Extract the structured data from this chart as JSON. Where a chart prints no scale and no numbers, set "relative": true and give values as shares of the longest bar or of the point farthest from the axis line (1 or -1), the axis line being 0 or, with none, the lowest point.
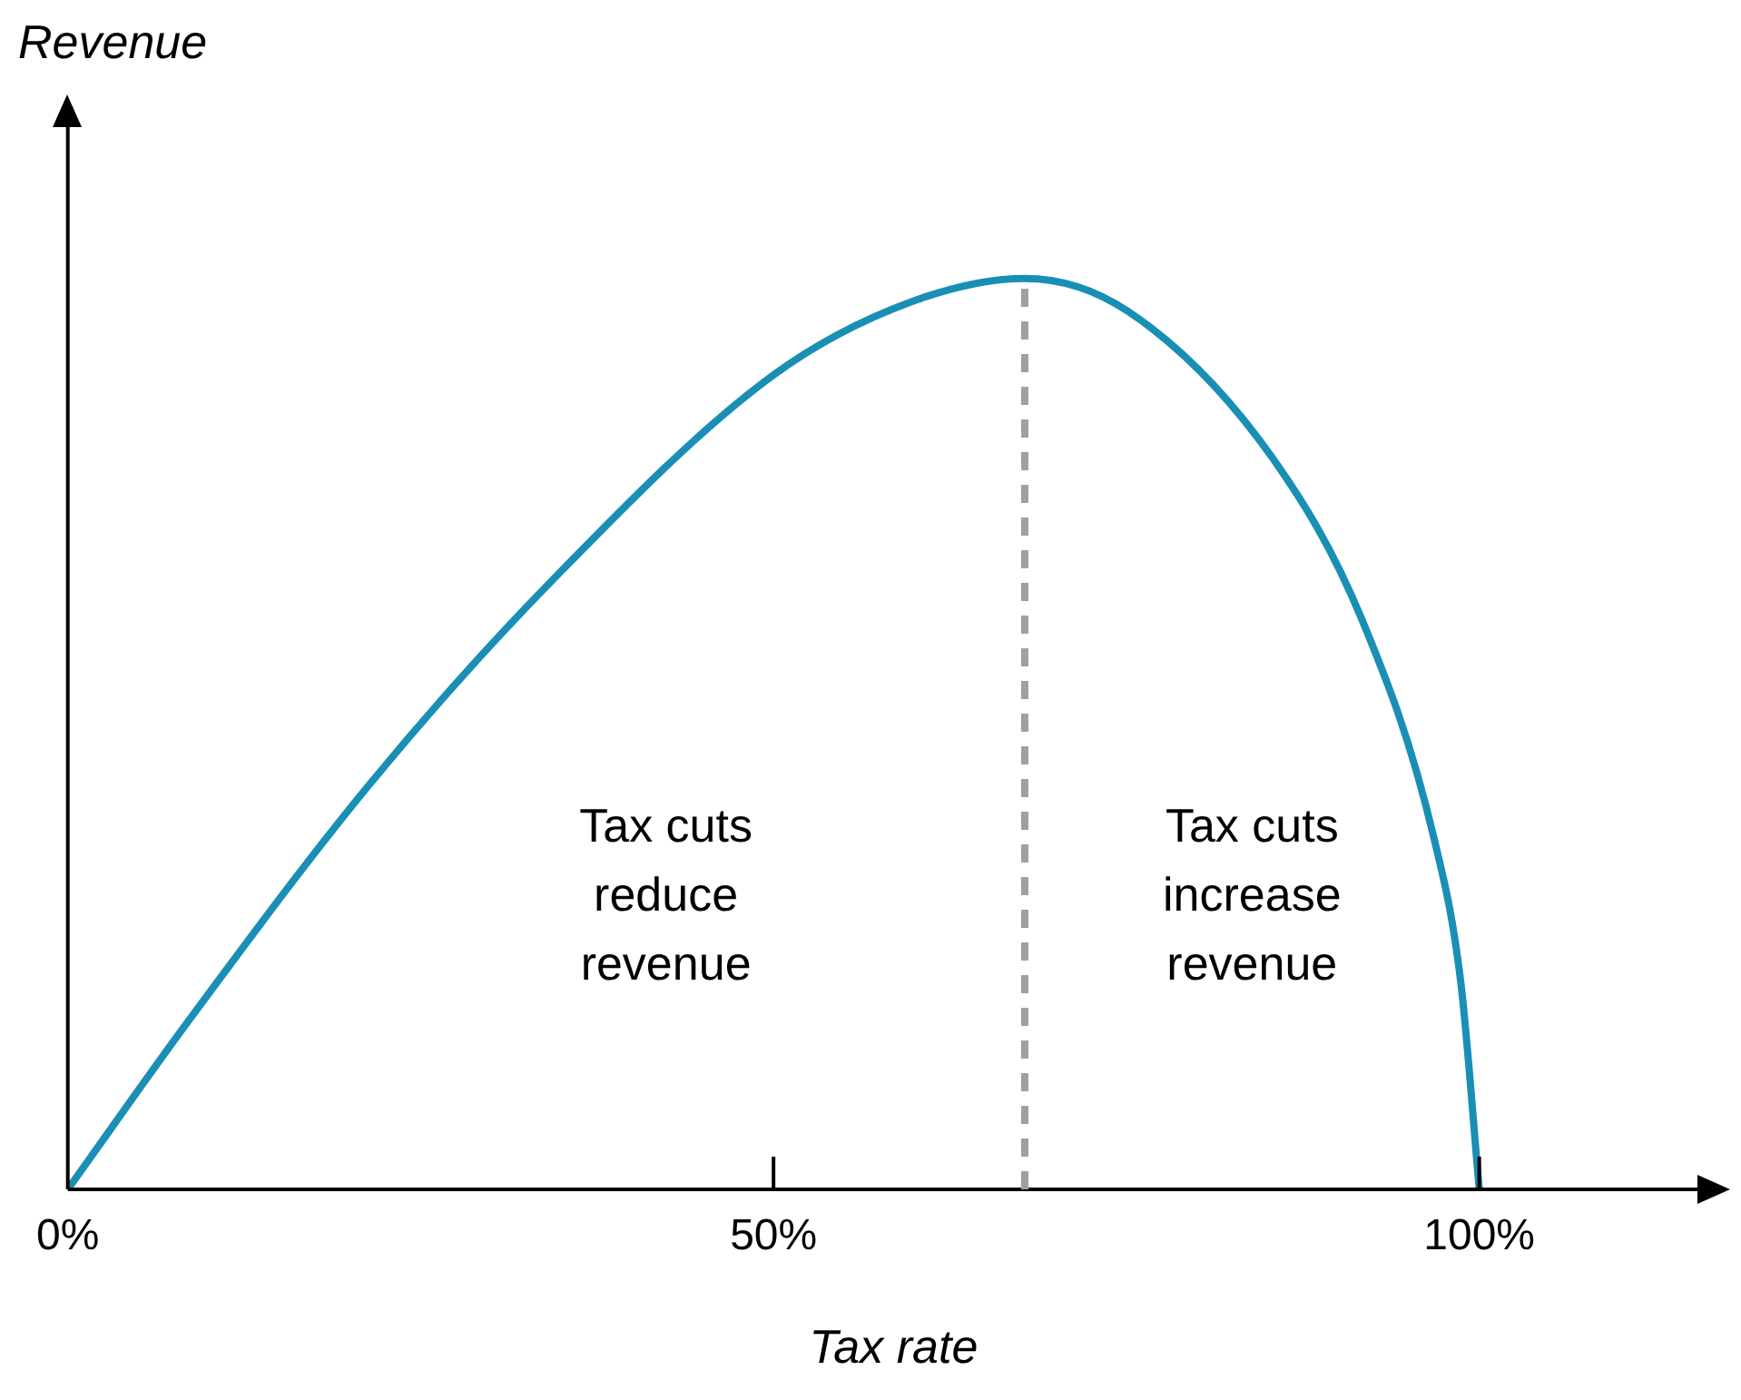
{
  "chart_data": {
    "type": "line",
    "relative": true,
    "xlabel": "Tax rate",
    "ylabel": "Revenue",
    "xlim": [
      0,
      117
    ],
    "xticks": [
      {
        "value": 0,
        "label": "0%"
      },
      {
        "value": 50,
        "label": "50%"
      },
      {
        "value": 100,
        "label": "100%"
      }
    ],
    "series": [
      {
        "color": "#1a8fb5",
        "x": [
          0,
          8.6,
          21.4,
          34.1,
          50,
          59.7,
          67.8,
          75.1,
          85.3,
          91.7,
          96.8,
          98.7,
          100
        ],
        "values": [
          0,
          0.186,
          0.445,
          0.665,
          0.894,
          0.974,
          1,
          0.964,
          0.804,
          0.625,
          0.385,
          0.226,
          0
        ]
      }
    ],
    "ref_lines": [
      {
        "axis": "x",
        "value": 67.8,
        "color": "#a0a0a0",
        "line_style": "dashed"
      }
    ],
    "annotations": [
      "Tax cuts reduce revenue",
      "Tax cuts increase revenue"
    ],
    "grid": false,
    "legend": false,
    "marker": "none",
    "line_style": "solid"
  }
}
